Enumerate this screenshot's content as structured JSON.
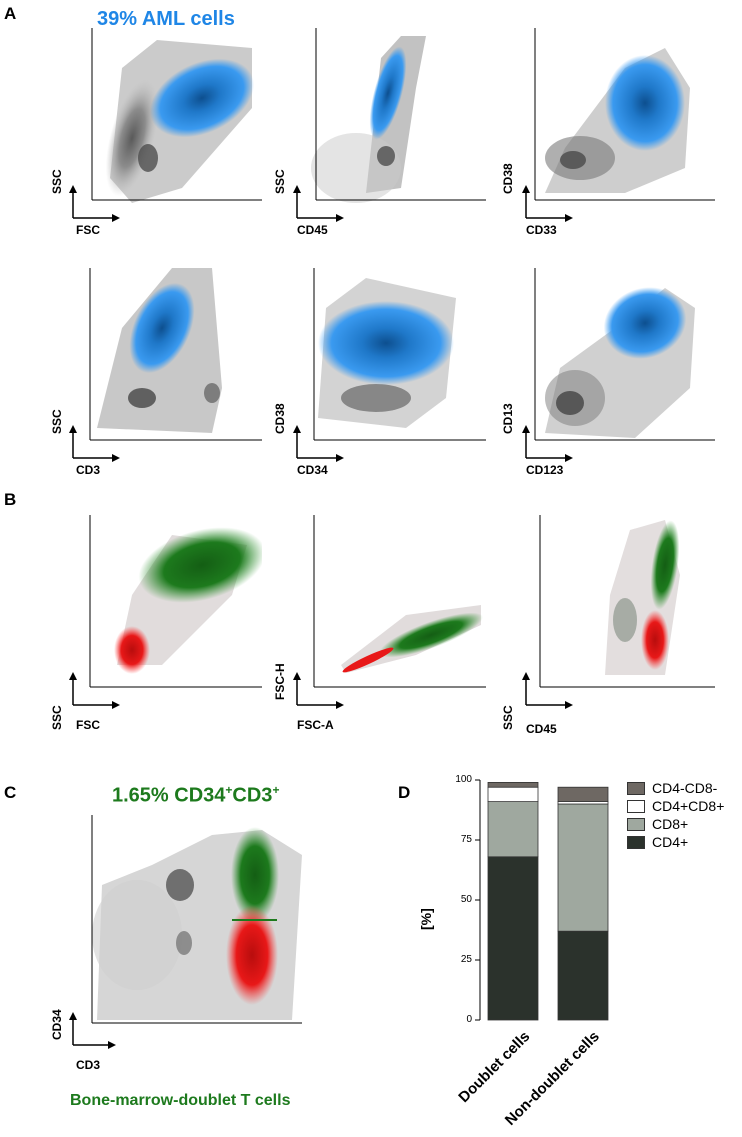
{
  "panels": {
    "a": {
      "label": "A",
      "title": "39% AML cells",
      "plots": [
        {
          "x": "FSC",
          "y": "SSC"
        },
        {
          "x": "CD45",
          "y": "SSC"
        },
        {
          "x": "CD33",
          "y": "CD38"
        },
        {
          "x": "CD3",
          "y": "SSC"
        },
        {
          "x": "CD34",
          "y": "CD38"
        },
        {
          "x": "CD123",
          "y": "CD13"
        }
      ]
    },
    "b": {
      "label": "B",
      "plots": [
        {
          "x": "FSC",
          "y": "SSC"
        },
        {
          "x": "FSC-A",
          "y": "FSC-H"
        },
        {
          "x": "CD45",
          "y": "SSC"
        }
      ]
    },
    "c": {
      "label": "C",
      "title_prefix": "1.65% CD34",
      "title_sup1": "+",
      "title_mid": "CD3",
      "title_sup2": "+",
      "x": "CD3",
      "y": "CD34",
      "caption": "Bone-marrow-doublet T cells"
    },
    "d": {
      "label": "D"
    }
  },
  "colors": {
    "blue": "#1f86e6",
    "green": "#1d7a1d",
    "red": "#e81818",
    "gray": "#9a9a9a"
  },
  "chart_data": {
    "type": "bar",
    "stacked": true,
    "categories": [
      "Doublet cells",
      "Non-doublet cells"
    ],
    "series": [
      {
        "name": "CD4+",
        "values": [
          68,
          37
        ],
        "color": "#2b322c"
      },
      {
        "name": "CD8+",
        "values": [
          23,
          53
        ],
        "color": "#9fa89f"
      },
      {
        "name": "CD4+CD8+",
        "values": [
          6,
          1
        ],
        "color": "#ffffff"
      },
      {
        "name": "CD4-CD8-",
        "values": [
          2,
          6
        ],
        "color": "#6e6863"
      }
    ],
    "legend_order": [
      "CD4-CD8-",
      "CD4+CD8+",
      "CD8+",
      "CD4+"
    ],
    "ylabel": "[%]",
    "ylim": [
      0,
      100
    ],
    "yticks": [
      0,
      25,
      50,
      75,
      100
    ],
    "legend_position": "top-right"
  }
}
